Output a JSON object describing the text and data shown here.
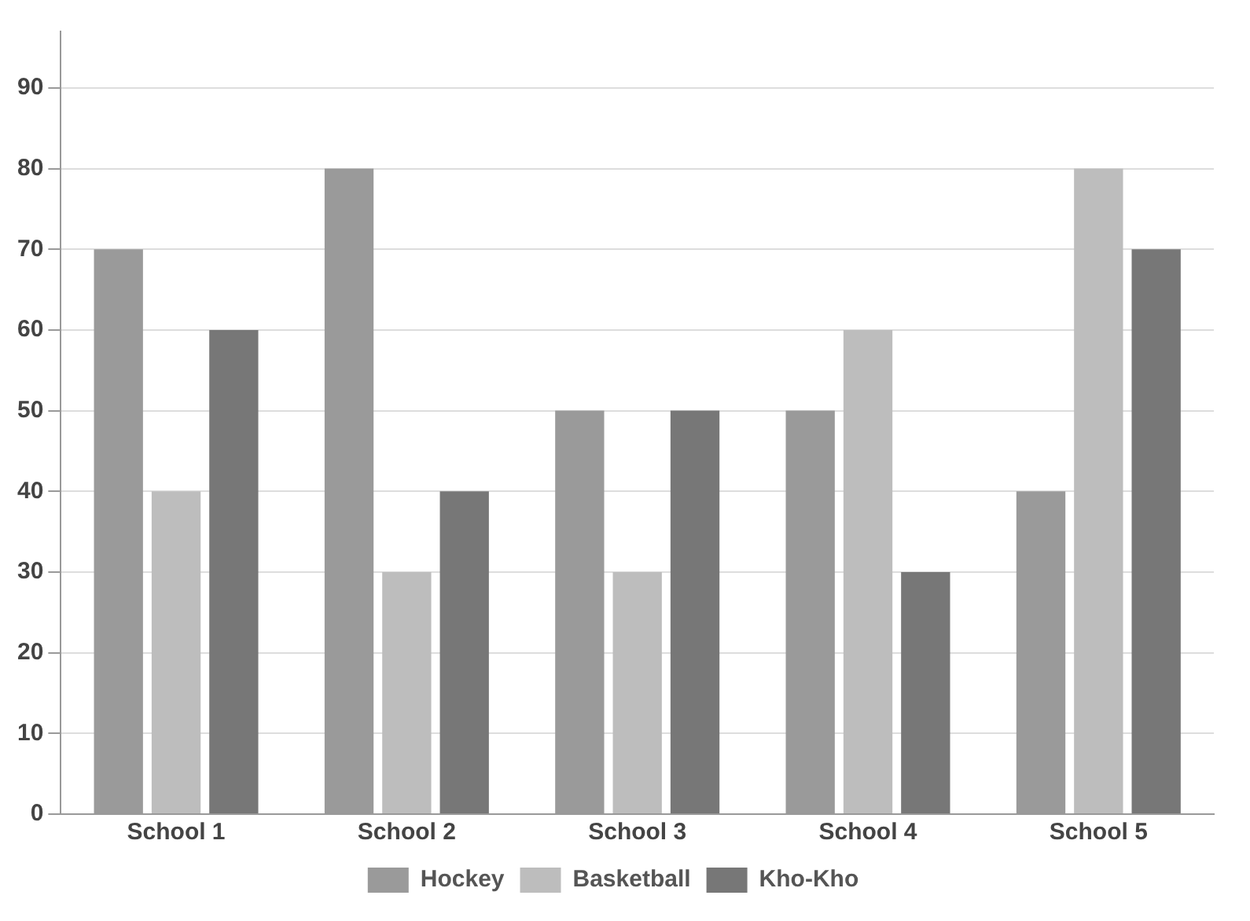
{
  "chart_data": {
    "type": "bar",
    "categories": [
      "School 1",
      "School 2",
      "School 3",
      "School 4",
      "School 5"
    ],
    "series": [
      {
        "name": "Hockey",
        "color": "#9a9a9a",
        "values": [
          70,
          80,
          50,
          50,
          40
        ]
      },
      {
        "name": "Basketball",
        "color": "#bdbdbd",
        "values": [
          40,
          30,
          30,
          60,
          80
        ]
      },
      {
        "name": "Kho-Kho",
        "color": "#777777",
        "values": [
          60,
          40,
          50,
          30,
          70
        ]
      }
    ],
    "ylim": [
      0,
      97
    ],
    "yticks": [
      0,
      10,
      20,
      30,
      40,
      50,
      60,
      70,
      80,
      90
    ],
    "grid": "y",
    "legend": "bottom"
  }
}
